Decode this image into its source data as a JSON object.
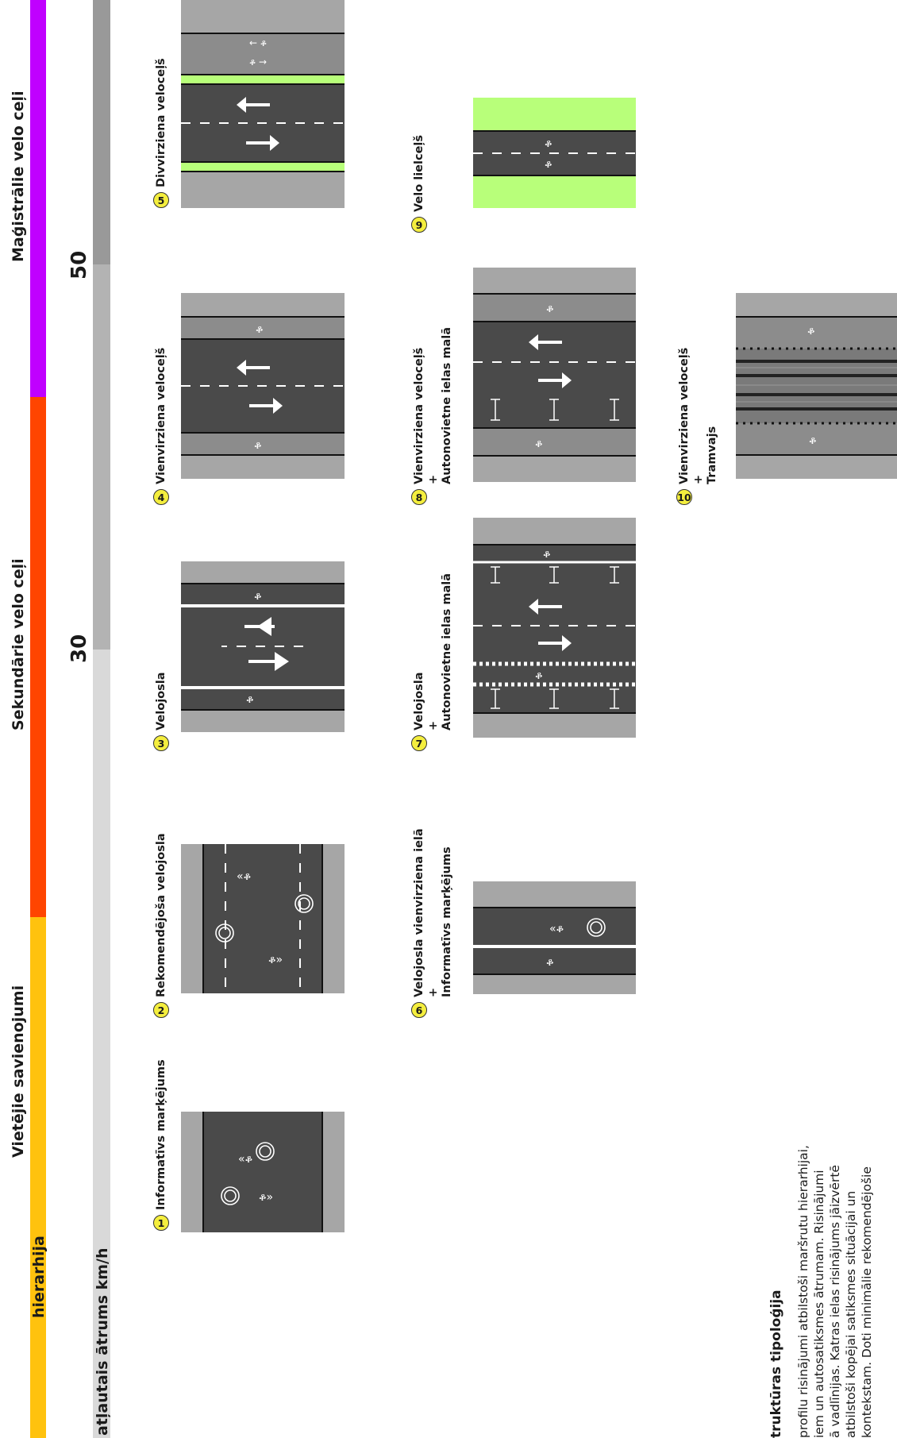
{
  "hierarchy": {
    "label": "hierarhija",
    "sections": [
      {
        "key": "local",
        "name": "Vietējie savienojumi",
        "color": "#FFC20E"
      },
      {
        "key": "secondary",
        "name": "Sekundārie velo ceļi",
        "color": "#FF4500"
      },
      {
        "key": "main",
        "name": "Maģistrālie velo ceļi",
        "color": "#C000FF"
      }
    ]
  },
  "speed": {
    "label": "atļautais ātrums km/h",
    "marks": [
      "30",
      "50"
    ],
    "colors": [
      "#D9D9D9",
      "#B3B3B3",
      "#999999"
    ]
  },
  "colors": {
    "asphalt": "#4A4A4A",
    "sidewalk": "#A6A6A6",
    "cyclepath": "#8C8C8C",
    "green": "#B8FF7A",
    "marking": "#FFFFFF",
    "badge": "#F4EE3E"
  },
  "items": [
    {
      "num": "1",
      "lines": [
        "Informatīvs marķējums"
      ],
      "icon": "road-informative-marking-icon"
    },
    {
      "num": "2",
      "lines": [
        "Rekomendējoša velojosla"
      ],
      "icon": "road-advisory-lane-icon"
    },
    {
      "num": "3",
      "lines": [
        "Velojosla"
      ],
      "icon": "road-bike-lane-icon"
    },
    {
      "num": "4",
      "lines": [
        "Vienvirziena veloceļš"
      ],
      "icon": "road-oneway-cycletrack-icon"
    },
    {
      "num": "5",
      "lines": [
        "Divvirziena veloceļš"
      ],
      "icon": "road-twoway-cycletrack-icon"
    },
    {
      "num": "6",
      "lines": [
        "Velojosla vienvirziena ielā",
        "+",
        "Informatīvs marķējums"
      ],
      "icon": "road-oneway-street-lane-icon"
    },
    {
      "num": "7",
      "lines": [
        "Velojosla",
        "+",
        "Autonovietne ielas malā"
      ],
      "icon": "road-lane-parking-icon"
    },
    {
      "num": "8",
      "lines": [
        "Vienvirziena veloceļš",
        "+",
        "Autonovietne ielas malā"
      ],
      "icon": "road-cycletrack-parking-icon"
    },
    {
      "num": "9",
      "lines": [
        "Velo lielceļš"
      ],
      "icon": "road-bike-highway-icon"
    },
    {
      "num": "10",
      "lines": [
        "Vienvirziena veloceļš",
        "+",
        "Tramvajs"
      ],
      "icon": "road-cycletrack-tram-icon"
    }
  ],
  "description": {
    "title": "truktūras tipoloģija",
    "lines": [
      "profilu risinājumi atbilstoši maršrutu hierarhijai,",
      "iem un autosatiksmes ātrumam. Risinājumi",
      "ā vadlīnijas. Katras ielas risinājums jāizvērtē",
      "atbilstoši kopējai satiksmes situācijai un",
      "kontekstam. Doti minimālie rekomendējošie"
    ]
  }
}
